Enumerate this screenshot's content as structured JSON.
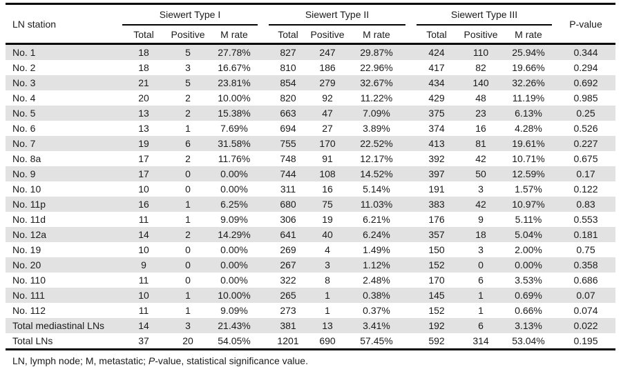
{
  "table": {
    "row_header": "LN station",
    "groups": [
      {
        "label": "Siewert Type I"
      },
      {
        "label": "Siewert Type II"
      },
      {
        "label": "Siewert Type III"
      }
    ],
    "subheaders": [
      "Total",
      "Positive",
      "M rate"
    ],
    "pvalue_header": "P-value",
    "rows": [
      {
        "station": "No. 1",
        "values": [
          "18",
          "5",
          "27.78%",
          "827",
          "247",
          "29.87%",
          "424",
          "110",
          "25.94%",
          "0.344"
        ]
      },
      {
        "station": "No. 2",
        "values": [
          "18",
          "3",
          "16.67%",
          "810",
          "186",
          "22.96%",
          "417",
          "82",
          "19.66%",
          "0.294"
        ]
      },
      {
        "station": "No. 3",
        "values": [
          "21",
          "5",
          "23.81%",
          "854",
          "279",
          "32.67%",
          "434",
          "140",
          "32.26%",
          "0.692"
        ]
      },
      {
        "station": "No. 4",
        "values": [
          "20",
          "2",
          "10.00%",
          "820",
          "92",
          "11.22%",
          "429",
          "48",
          "11.19%",
          "0.985"
        ]
      },
      {
        "station": "No. 5",
        "values": [
          "13",
          "2",
          "15.38%",
          "663",
          "47",
          "7.09%",
          "375",
          "23",
          "6.13%",
          "0.25"
        ]
      },
      {
        "station": "No. 6",
        "values": [
          "13",
          "1",
          "7.69%",
          "694",
          "27",
          "3.89%",
          "374",
          "16",
          "4.28%",
          "0.526"
        ]
      },
      {
        "station": "No. 7",
        "values": [
          "19",
          "6",
          "31.58%",
          "755",
          "170",
          "22.52%",
          "413",
          "81",
          "19.61%",
          "0.227"
        ]
      },
      {
        "station": "No. 8a",
        "values": [
          "17",
          "2",
          "11.76%",
          "748",
          "91",
          "12.17%",
          "392",
          "42",
          "10.71%",
          "0.675"
        ]
      },
      {
        "station": "No. 9",
        "values": [
          "17",
          "0",
          "0.00%",
          "744",
          "108",
          "14.52%",
          "397",
          "50",
          "12.59%",
          "0.17"
        ]
      },
      {
        "station": "No. 10",
        "values": [
          "10",
          "0",
          "0.00%",
          "311",
          "16",
          "5.14%",
          "191",
          "3",
          "1.57%",
          "0.122"
        ]
      },
      {
        "station": "No. 11p",
        "values": [
          "16",
          "1",
          "6.25%",
          "680",
          "75",
          "11.03%",
          "383",
          "42",
          "10.97%",
          "0.83"
        ]
      },
      {
        "station": "No. 11d",
        "values": [
          "11",
          "1",
          "9.09%",
          "306",
          "19",
          "6.21%",
          "176",
          "9",
          "5.11%",
          "0.553"
        ]
      },
      {
        "station": "No. 12a",
        "values": [
          "14",
          "2",
          "14.29%",
          "641",
          "40",
          "6.24%",
          "357",
          "18",
          "5.04%",
          "0.181"
        ]
      },
      {
        "station": "No. 19",
        "values": [
          "10",
          "0",
          "0.00%",
          "269",
          "4",
          "1.49%",
          "150",
          "3",
          "2.00%",
          "0.75"
        ]
      },
      {
        "station": "No. 20",
        "values": [
          "9",
          "0",
          "0.00%",
          "267",
          "3",
          "1.12%",
          "152",
          "0",
          "0.00%",
          "0.358"
        ]
      },
      {
        "station": "No. 110",
        "values": [
          "11",
          "0",
          "0.00%",
          "322",
          "8",
          "2.48%",
          "170",
          "6",
          "3.53%",
          "0.686"
        ]
      },
      {
        "station": "No. 111",
        "values": [
          "10",
          "1",
          "10.00%",
          "265",
          "1",
          "0.38%",
          "145",
          "1",
          "0.69%",
          "0.07"
        ]
      },
      {
        "station": "No. 112",
        "values": [
          "11",
          "1",
          "9.09%",
          "273",
          "1",
          "0.37%",
          "152",
          "1",
          "0.66%",
          "0.074"
        ]
      },
      {
        "station": "Total mediastinal LNs",
        "values": [
          "14",
          "3",
          "21.43%",
          "381",
          "13",
          "3.41%",
          "192",
          "6",
          "3.13%",
          "0.022"
        ]
      },
      {
        "station": "Total LNs",
        "values": [
          "37",
          "20",
          "54.05%",
          "1201",
          "690",
          "57.45%",
          "592",
          "314",
          "53.04%",
          "0.195"
        ]
      }
    ],
    "footnote": {
      "part1": "LN, lymph node; M, metastatic; ",
      "italic": "P",
      "part2": "-value, statistical significance value."
    }
  },
  "colors": {
    "stripe": "#e2e2e2",
    "border": "#000000",
    "text": "#1a1a1a"
  }
}
